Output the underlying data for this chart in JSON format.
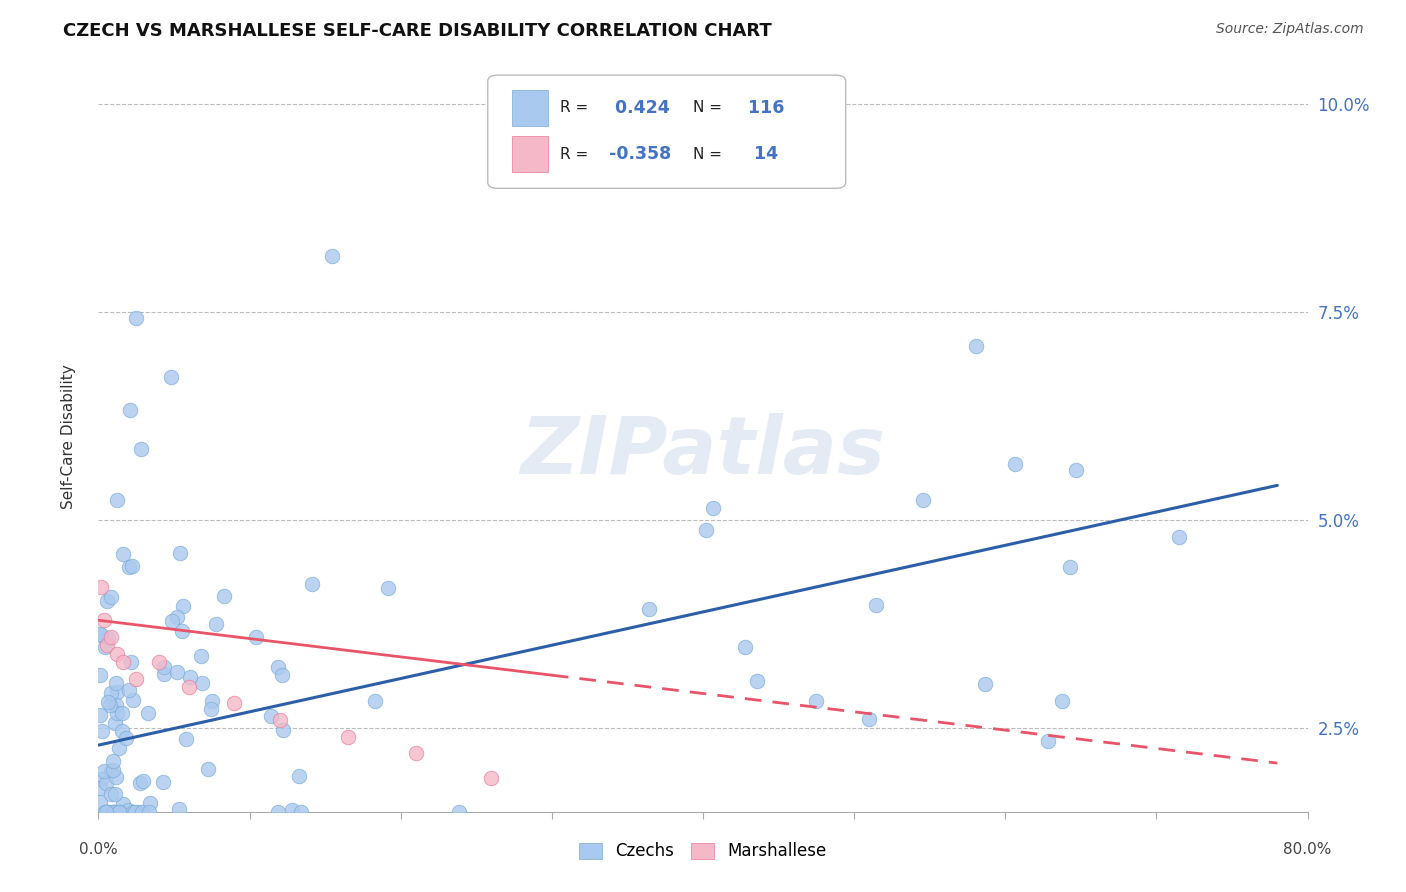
{
  "title": "CZECH VS MARSHALLESE SELF-CARE DISABILITY CORRELATION CHART",
  "source": "Source: ZipAtlas.com",
  "ylabel": "Self-Care Disability",
  "xlim": [
    0.0,
    0.8
  ],
  "ylim": [
    0.015,
    0.105
  ],
  "x_left_label": "0.0%",
  "x_right_label": "80.0%",
  "yticks": [
    0.025,
    0.05,
    0.075,
    0.1
  ],
  "yticklabels": [
    "2.5%",
    "5.0%",
    "7.5%",
    "10.0%"
  ],
  "czech_color": "#aac9ee",
  "czech_edge": "#7aacd6",
  "marshallese_color": "#f4b8c8",
  "marshallese_edge": "#e87a98",
  "trend_czech_color": "#2d5fa8",
  "trend_marsh_color": "#e8556a",
  "R_czech": 0.424,
  "N_czech": 116,
  "R_marsh": -0.358,
  "N_marsh": 14,
  "background_color": "#ffffff",
  "grid_color": "#bbbbbb",
  "watermark": "ZIPatlas",
  "trend_czech_intercept": 0.023,
  "trend_czech_slope": 0.04,
  "trend_marsh_intercept": 0.038,
  "trend_marsh_slope": -0.022
}
